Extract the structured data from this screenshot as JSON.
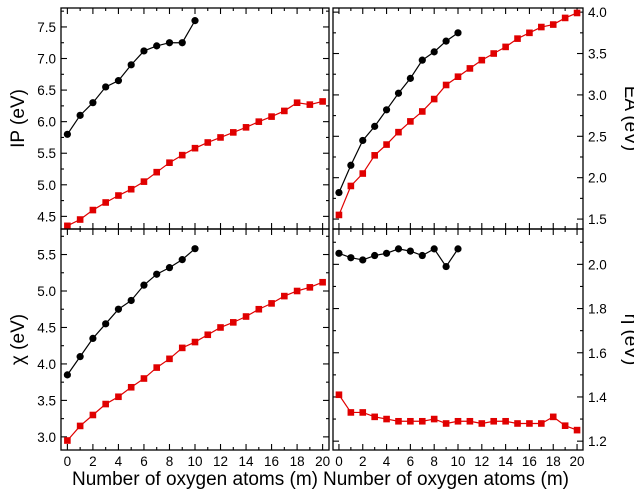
{
  "chart_data": [
    {
      "type": "line",
      "xlabel": "",
      "ylabel": "IP (eV)",
      "ylabel_side": "left",
      "xlim": [
        -0.5,
        20.5
      ],
      "ylim": [
        4.3,
        7.8
      ],
      "xticks": [
        0,
        2,
        4,
        6,
        8,
        10,
        12,
        14,
        16,
        18,
        20
      ],
      "xtick_labels": [],
      "yticks": [
        4.5,
        5.0,
        5.5,
        6.0,
        6.5,
        7.0,
        7.5
      ],
      "ytick_labels": [
        "4.5",
        "5.0",
        "5.5",
        "6.0",
        "6.5",
        "7.0",
        "7.5"
      ],
      "series": [
        {
          "color": "#000000",
          "marker": "circle",
          "x": [
            0,
            1,
            2,
            3,
            4,
            5,
            6,
            7,
            8,
            9,
            10
          ],
          "y": [
            5.8,
            6.1,
            6.3,
            6.55,
            6.65,
            6.9,
            7.12,
            7.2,
            7.25,
            7.25,
            7.6
          ]
        },
        {
          "color": "#e00000",
          "marker": "square",
          "x": [
            0,
            1,
            2,
            3,
            4,
            5,
            6,
            7,
            8,
            9,
            10,
            11,
            12,
            13,
            14,
            15,
            16,
            17,
            18,
            19,
            20
          ],
          "y": [
            4.35,
            4.45,
            4.6,
            4.72,
            4.83,
            4.93,
            5.05,
            5.2,
            5.35,
            5.47,
            5.58,
            5.67,
            5.75,
            5.83,
            5.91,
            6.0,
            6.08,
            6.17,
            6.3,
            6.27,
            6.32
          ]
        }
      ]
    },
    {
      "type": "line",
      "xlabel": "",
      "ylabel": "EA (eV)",
      "ylabel_side": "right",
      "xlim": [
        -0.5,
        20.5
      ],
      "ylim": [
        1.38,
        4.05
      ],
      "xticks": [
        0,
        2,
        4,
        6,
        8,
        10,
        12,
        14,
        16,
        18,
        20
      ],
      "xtick_labels": [],
      "yticks": [
        1.5,
        2.0,
        2.5,
        3.0,
        3.5,
        4.0
      ],
      "ytick_labels": [
        "1.5",
        "2.0",
        "2.5",
        "3.0",
        "3.5",
        "4.0"
      ],
      "series": [
        {
          "color": "#000000",
          "marker": "circle",
          "x": [
            0,
            1,
            2,
            3,
            4,
            5,
            6,
            7,
            8,
            9,
            10
          ],
          "y": [
            1.82,
            2.15,
            2.45,
            2.62,
            2.82,
            3.02,
            3.2,
            3.42,
            3.52,
            3.65,
            3.75
          ]
        },
        {
          "color": "#e00000",
          "marker": "square",
          "x": [
            0,
            1,
            2,
            3,
            4,
            5,
            6,
            7,
            8,
            9,
            10,
            11,
            12,
            13,
            14,
            15,
            16,
            17,
            18,
            19,
            20
          ],
          "y": [
            1.55,
            1.9,
            2.05,
            2.27,
            2.4,
            2.55,
            2.68,
            2.8,
            2.95,
            3.12,
            3.22,
            3.32,
            3.42,
            3.5,
            3.58,
            3.68,
            3.75,
            3.82,
            3.85,
            3.93,
            3.99
          ]
        }
      ]
    },
    {
      "type": "line",
      "xlabel": "Number of oxygen atoms (m)",
      "ylabel": "χ (eV)",
      "ylabel_side": "left",
      "xlim": [
        -0.5,
        20.5
      ],
      "ylim": [
        2.82,
        5.85
      ],
      "xticks": [
        0,
        2,
        4,
        6,
        8,
        10,
        12,
        14,
        16,
        18,
        20
      ],
      "xtick_labels": [
        "0",
        "2",
        "4",
        "6",
        "8",
        "10",
        "12",
        "14",
        "16",
        "18",
        "20"
      ],
      "yticks": [
        3.0,
        3.5,
        4.0,
        4.5,
        5.0,
        5.5
      ],
      "ytick_labels": [
        "3.0",
        "3.5",
        "4.0",
        "4.5",
        "5.0",
        "5.5"
      ],
      "series": [
        {
          "color": "#000000",
          "marker": "circle",
          "x": [
            0,
            1,
            2,
            3,
            4,
            5,
            6,
            7,
            8,
            9,
            10
          ],
          "y": [
            3.85,
            4.1,
            4.35,
            4.55,
            4.75,
            4.87,
            5.08,
            5.23,
            5.32,
            5.43,
            5.58
          ]
        },
        {
          "color": "#e00000",
          "marker": "square",
          "x": [
            0,
            1,
            2,
            3,
            4,
            5,
            6,
            7,
            8,
            9,
            10,
            11,
            12,
            13,
            14,
            15,
            16,
            17,
            18,
            19,
            20
          ],
          "y": [
            2.95,
            3.15,
            3.3,
            3.45,
            3.55,
            3.68,
            3.8,
            3.95,
            4.07,
            4.22,
            4.3,
            4.4,
            4.5,
            4.57,
            4.65,
            4.75,
            4.83,
            4.93,
            5.0,
            5.05,
            5.12
          ]
        }
      ]
    },
    {
      "type": "line",
      "xlabel": "Number of oxygen atoms (m)",
      "ylabel": "η (eV)",
      "ylabel_side": "right",
      "xlim": [
        -0.5,
        20.5
      ],
      "ylim": [
        1.16,
        2.16
      ],
      "xticks": [
        0,
        2,
        4,
        6,
        8,
        10,
        12,
        14,
        16,
        18,
        20
      ],
      "xtick_labels": [
        "0",
        "2",
        "4",
        "6",
        "8",
        "10",
        "12",
        "14",
        "16",
        "18",
        "20"
      ],
      "yticks": [
        1.2,
        1.4,
        1.6,
        1.8,
        2.0
      ],
      "ytick_labels": [
        "1.2",
        "1.4",
        "1.6",
        "1.8",
        "2.0"
      ],
      "series": [
        {
          "color": "#000000",
          "marker": "circle",
          "x": [
            0,
            1,
            2,
            3,
            4,
            5,
            6,
            7,
            8,
            9,
            10
          ],
          "y": [
            2.05,
            2.03,
            2.02,
            2.04,
            2.05,
            2.07,
            2.06,
            2.04,
            2.07,
            1.99,
            2.07
          ]
        },
        {
          "color": "#e00000",
          "marker": "square",
          "x": [
            0,
            1,
            2,
            3,
            4,
            5,
            6,
            7,
            8,
            9,
            10,
            11,
            12,
            13,
            14,
            15,
            16,
            17,
            18,
            19,
            20
          ],
          "y": [
            1.41,
            1.33,
            1.33,
            1.31,
            1.3,
            1.29,
            1.29,
            1.29,
            1.3,
            1.28,
            1.29,
            1.29,
            1.28,
            1.29,
            1.29,
            1.28,
            1.28,
            1.28,
            1.31,
            1.27,
            1.25
          ]
        }
      ]
    }
  ]
}
